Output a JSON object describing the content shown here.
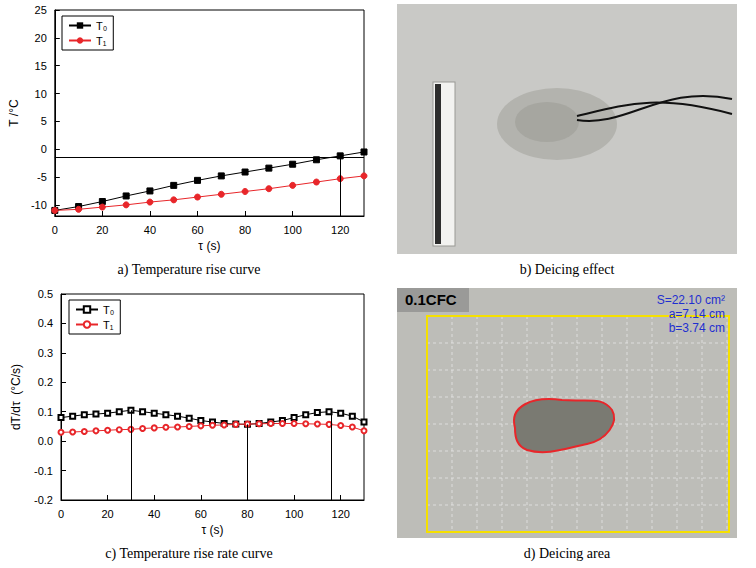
{
  "chart_data": [
    {
      "type": "line",
      "title": "a) Temperature rise curve",
      "x_label": "τ (s)",
      "y_label": "T /°C",
      "x": [
        0,
        10,
        20,
        30,
        40,
        50,
        60,
        70,
        80,
        90,
        100,
        110,
        120,
        130
      ],
      "series": [
        {
          "name": "T₀",
          "color": "#000000",
          "marker": "square",
          "values": [
            -11,
            -10.3,
            -9.4,
            -8.4,
            -7.5,
            -6.5,
            -5.6,
            -4.8,
            -4.1,
            -3.4,
            -2.7,
            -1.9,
            -1.2,
            -0.5
          ]
        },
        {
          "name": "T₁",
          "color": "#e8262a",
          "marker": "circle",
          "values": [
            -11,
            -10.8,
            -10.4,
            -10,
            -9.5,
            -9.1,
            -8.6,
            -8.1,
            -7.6,
            -7.1,
            -6.5,
            -5.9,
            -5.3,
            -4.8
          ]
        }
      ],
      "xlim": [
        0,
        130
      ],
      "xticks": [
        0,
        20,
        40,
        60,
        80,
        100,
        120
      ],
      "ylim": [
        -12,
        25
      ],
      "yticks": [
        -10,
        -5,
        0,
        5,
        10,
        15,
        20,
        25
      ],
      "hline": -1.5,
      "vlines": [
        {
          "x": 120,
          "to": -1.5
        }
      ],
      "legend": "top-left",
      "grid": false
    },
    {
      "type": "line",
      "title": "c) Temperature rise rate curve",
      "x_label": "τ (s)",
      "y_label": "dT/dτ  (°C/s)",
      "x": [
        0,
        5,
        10,
        15,
        20,
        25,
        30,
        35,
        40,
        45,
        50,
        55,
        60,
        65,
        70,
        75,
        80,
        85,
        90,
        95,
        100,
        105,
        110,
        115,
        120,
        125,
        130
      ],
      "series": [
        {
          "name": "T₀",
          "color": "#000000",
          "marker": "open-square",
          "values": [
            0.08,
            0.085,
            0.09,
            0.092,
            0.095,
            0.1,
            0.105,
            0.1,
            0.095,
            0.09,
            0.085,
            0.078,
            0.07,
            0.065,
            0.06,
            0.058,
            0.057,
            0.06,
            0.065,
            0.07,
            0.08,
            0.09,
            0.097,
            0.1,
            0.095,
            0.085,
            0.065
          ]
        },
        {
          "name": "T₁",
          "color": "#e8262a",
          "marker": "open-circle",
          "values": [
            0.03,
            0.031,
            0.033,
            0.035,
            0.037,
            0.039,
            0.04,
            0.043,
            0.045,
            0.047,
            0.048,
            0.05,
            0.052,
            0.054,
            0.055,
            0.057,
            0.058,
            0.059,
            0.06,
            0.06,
            0.06,
            0.059,
            0.058,
            0.057,
            0.053,
            0.048,
            0.035
          ]
        }
      ],
      "xlim": [
        0,
        130
      ],
      "xticks": [
        0,
        20,
        40,
        60,
        80,
        100,
        120
      ],
      "ylim": [
        -0.2,
        0.5
      ],
      "yticks": [
        -0.2,
        -0.1,
        {
          "value": 0,
          "label": "0.0"
        },
        0.1,
        0.2,
        0.3,
        0.4,
        0.5
      ],
      "vlines": [
        {
          "x": 30,
          "to": 0.105
        },
        {
          "x": 80,
          "to": 0.057
        },
        {
          "x": 116,
          "to": 0.1
        }
      ],
      "legend": "top-left",
      "grid": false
    }
  ],
  "photos": [
    {
      "caption": "b) Deicing effect"
    },
    {
      "caption": "d) Deicing area",
      "label": "0.1CFC",
      "annotations": [
        "S=22.10 cm²",
        "a=7.14 cm",
        "b=3.74 cm"
      ]
    }
  ]
}
